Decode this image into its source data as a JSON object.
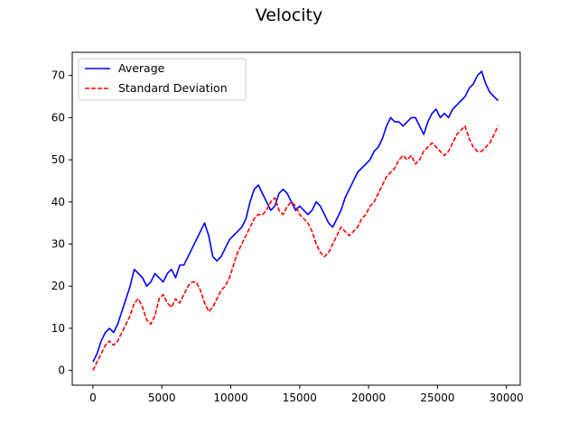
{
  "chart_data": {
    "type": "line",
    "title": "Velocity",
    "xlabel": "",
    "ylabel": "",
    "xlim": [
      -1500,
      31000
    ],
    "ylim": [
      -3.5,
      75.5
    ],
    "xticks": [
      0,
      5000,
      10000,
      15000,
      20000,
      25000,
      30000
    ],
    "yticks": [
      0,
      10,
      20,
      30,
      40,
      50,
      60,
      70
    ],
    "grid": false,
    "legend_placement": "top-left",
    "series": [
      {
        "name": "Average",
        "color": "#0000ff",
        "style": "solid",
        "x": [
          0,
          300,
          600,
          900,
          1200,
          1500,
          1800,
          2100,
          2400,
          2700,
          3000,
          3300,
          3600,
          3900,
          4200,
          4500,
          4800,
          5100,
          5400,
          5700,
          6000,
          6300,
          6600,
          6900,
          7200,
          7500,
          7800,
          8100,
          8400,
          8700,
          9000,
          9300,
          9600,
          9900,
          10200,
          10500,
          10800,
          11100,
          11400,
          11700,
          12000,
          12300,
          12600,
          12900,
          13200,
          13500,
          13800,
          14100,
          14400,
          14700,
          15000,
          15300,
          15600,
          15900,
          16200,
          16500,
          16800,
          17100,
          17400,
          17700,
          18000,
          18300,
          18600,
          18900,
          19200,
          19500,
          19800,
          20100,
          20400,
          20700,
          21000,
          21300,
          21600,
          21900,
          22200,
          22500,
          22800,
          23100,
          23400,
          23700,
          24000,
          24300,
          24600,
          24900,
          25200,
          25500,
          25800,
          26100,
          26400,
          26700,
          27000,
          27300,
          27600,
          27900,
          28200,
          28500,
          28800,
          29100,
          29400
        ],
        "y": [
          2,
          4,
          7,
          9,
          10,
          9,
          11,
          14,
          17,
          20,
          24,
          23,
          22,
          20,
          21,
          23,
          22,
          21,
          23,
          24,
          22,
          25,
          25,
          27,
          29,
          31,
          33,
          35,
          32,
          27,
          26,
          27,
          29,
          31,
          32,
          33,
          34,
          36,
          40,
          43,
          44,
          42,
          40,
          38,
          39,
          42,
          43,
          42,
          40,
          38,
          39,
          38,
          37,
          38,
          40,
          39,
          37,
          35,
          34,
          36,
          38,
          41,
          43,
          45,
          47,
          48,
          49,
          50,
          52,
          53,
          55,
          58,
          60,
          59,
          59,
          58,
          59,
          60,
          60,
          58,
          56,
          59,
          61,
          62,
          60,
          61,
          60,
          62,
          63,
          64,
          65,
          67,
          68,
          70,
          71,
          68,
          66,
          65,
          64
        ]
      },
      {
        "name": "Standard Deviation",
        "color": "#ff0000",
        "style": "dashed",
        "x": [
          0,
          300,
          600,
          900,
          1200,
          1500,
          1800,
          2100,
          2400,
          2700,
          3000,
          3300,
          3600,
          3900,
          4200,
          4500,
          4800,
          5100,
          5400,
          5700,
          6000,
          6300,
          6600,
          6900,
          7200,
          7500,
          7800,
          8100,
          8400,
          8700,
          9000,
          9300,
          9600,
          9900,
          10200,
          10500,
          10800,
          11100,
          11400,
          11700,
          12000,
          12300,
          12600,
          12900,
          13200,
          13500,
          13800,
          14100,
          14400,
          14700,
          15000,
          15300,
          15600,
          15900,
          16200,
          16500,
          16800,
          17100,
          17400,
          17700,
          18000,
          18300,
          18600,
          18900,
          19200,
          19500,
          19800,
          20100,
          20400,
          20700,
          21000,
          21300,
          21600,
          21900,
          22200,
          22500,
          22800,
          23100,
          23400,
          23700,
          24000,
          24300,
          24600,
          24900,
          25200,
          25500,
          25800,
          26100,
          26400,
          26700,
          27000,
          27300,
          27600,
          27900,
          28200,
          28500,
          28800,
          29100,
          29400
        ],
        "y": [
          0,
          2,
          4,
          6,
          7,
          6,
          7,
          9,
          11,
          13,
          16,
          17,
          15,
          12,
          11,
          13,
          17,
          18,
          16,
          15,
          17,
          16,
          18,
          20,
          21,
          21,
          19,
          16,
          14,
          15,
          17,
          19,
          20,
          22,
          25,
          28,
          30,
          32,
          34,
          36,
          37,
          37,
          38,
          40,
          41,
          38,
          37,
          39,
          40,
          39,
          37,
          36,
          35,
          33,
          30,
          28,
          27,
          28,
          30,
          32,
          34,
          33,
          32,
          33,
          34,
          36,
          37,
          39,
          40,
          42,
          44,
          46,
          47,
          48,
          50,
          51,
          50,
          51,
          49,
          50,
          52,
          53,
          54,
          53,
          52,
          51,
          52,
          54,
          56,
          57,
          58,
          55,
          53,
          52,
          52,
          53,
          54,
          56,
          58
        ]
      }
    ]
  }
}
